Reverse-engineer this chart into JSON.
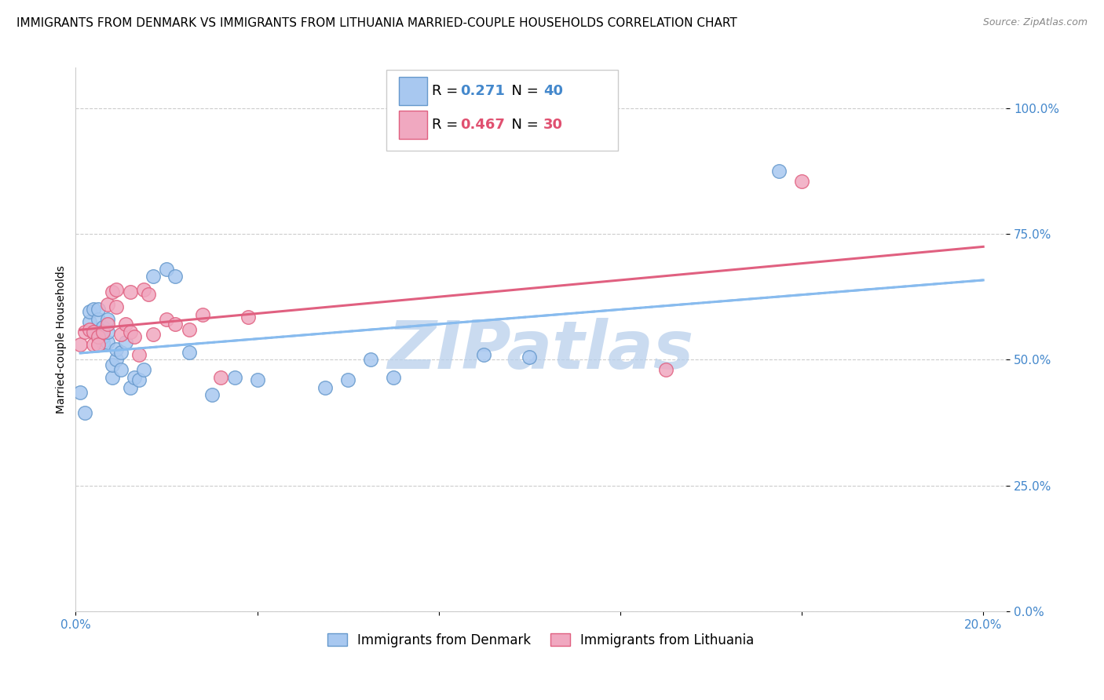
{
  "title": "IMMIGRANTS FROM DENMARK VS IMMIGRANTS FROM LITHUANIA MARRIED-COUPLE HOUSEHOLDS CORRELATION CHART",
  "source": "Source: ZipAtlas.com",
  "ylabel": "Married-couple Households",
  "ytick_labels": [
    "0.0%",
    "25.0%",
    "50.0%",
    "75.0%",
    "100.0%"
  ],
  "ytick_values": [
    0.0,
    0.25,
    0.5,
    0.75,
    1.0
  ],
  "xlim": [
    0.0,
    0.205
  ],
  "ylim": [
    0.0,
    1.08
  ],
  "color_denmark": "#a8c8f0",
  "color_denmark_edge": "#6699cc",
  "color_lithuania": "#f0a8c0",
  "color_lithuania_edge": "#e06080",
  "color_trendline_denmark": "#88bbee",
  "color_trendline_lithuania": "#e06080",
  "tick_color": "#4488cc",
  "grid_color": "#cccccc",
  "background_color": "#ffffff",
  "title_fontsize": 11,
  "tick_fontsize": 11,
  "ylabel_fontsize": 10,
  "watermark_text": "ZIPatlas",
  "watermark_color_r": 180,
  "watermark_color_g": 205,
  "watermark_color_b": 235,
  "denmark_x": [
    0.001,
    0.002,
    0.003,
    0.003,
    0.004,
    0.004,
    0.005,
    0.005,
    0.005,
    0.006,
    0.006,
    0.006,
    0.007,
    0.007,
    0.007,
    0.008,
    0.008,
    0.009,
    0.009,
    0.01,
    0.01,
    0.011,
    0.012,
    0.013,
    0.014,
    0.015,
    0.017,
    0.02,
    0.022,
    0.025,
    0.03,
    0.035,
    0.04,
    0.055,
    0.06,
    0.065,
    0.07,
    0.09,
    0.1,
    0.155
  ],
  "denmark_y": [
    0.435,
    0.395,
    0.575,
    0.595,
    0.555,
    0.6,
    0.555,
    0.58,
    0.6,
    0.535,
    0.545,
    0.565,
    0.535,
    0.555,
    0.58,
    0.465,
    0.49,
    0.5,
    0.52,
    0.48,
    0.515,
    0.535,
    0.445,
    0.465,
    0.46,
    0.48,
    0.665,
    0.68,
    0.665,
    0.515,
    0.43,
    0.465,
    0.46,
    0.445,
    0.46,
    0.5,
    0.465,
    0.51,
    0.505,
    0.875
  ],
  "lithuania_x": [
    0.001,
    0.002,
    0.003,
    0.004,
    0.004,
    0.005,
    0.005,
    0.006,
    0.007,
    0.007,
    0.008,
    0.009,
    0.009,
    0.01,
    0.011,
    0.012,
    0.012,
    0.013,
    0.014,
    0.015,
    0.016,
    0.017,
    0.02,
    0.022,
    0.025,
    0.028,
    0.032,
    0.038,
    0.13,
    0.16
  ],
  "lithuania_y": [
    0.53,
    0.555,
    0.56,
    0.555,
    0.53,
    0.545,
    0.53,
    0.555,
    0.61,
    0.57,
    0.635,
    0.64,
    0.605,
    0.55,
    0.57,
    0.555,
    0.635,
    0.545,
    0.51,
    0.64,
    0.63,
    0.55,
    0.58,
    0.57,
    0.56,
    0.59,
    0.465,
    0.585,
    0.48,
    0.855
  ],
  "legend_r1_val": "0.271",
  "legend_n1_val": "40",
  "legend_r2_val": "0.467",
  "legend_n2_val": "30",
  "legend_color_blue": "#4488cc",
  "legend_color_pink": "#e05070"
}
